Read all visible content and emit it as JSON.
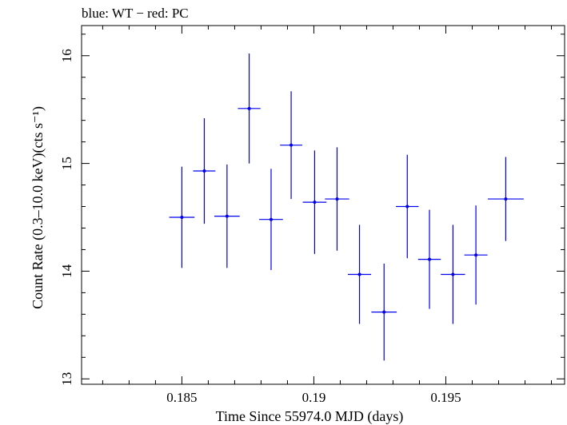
{
  "chart_data": {
    "type": "scatter",
    "title": "blue: WT − red: PC",
    "xlabel": "Time Since 55974.0 MJD (days)",
    "ylabel": "Count Rate (0.3–10.0 keV)(cts s⁻¹)",
    "xlim": [
      0.1812,
      0.1995
    ],
    "ylim": [
      12.95,
      16.28
    ],
    "x_ticks": [
      0.185,
      0.19,
      0.195
    ],
    "x_tick_labels": [
      "0.185",
      "0.19",
      "0.195"
    ],
    "y_ticks": [
      13,
      14,
      15,
      16
    ],
    "y_tick_labels": [
      "13",
      "14",
      "15",
      "16"
    ],
    "grid": false,
    "series": [
      {
        "color": "#0000ee",
        "points": [
          {
            "x": 0.185,
            "y": 14.5,
            "xerr": 0.00048,
            "yerr": 0.47
          },
          {
            "x": 0.18585,
            "y": 14.93,
            "xerr": 0.00042,
            "yerr": 0.49
          },
          {
            "x": 0.18671,
            "y": 14.51,
            "xerr": 0.00048,
            "yerr": 0.48
          },
          {
            "x": 0.18755,
            "y": 15.51,
            "xerr": 0.00043,
            "yerr": 0.51
          },
          {
            "x": 0.18838,
            "y": 14.48,
            "xerr": 0.00045,
            "yerr": 0.47
          },
          {
            "x": 0.18914,
            "y": 15.17,
            "xerr": 0.00042,
            "yerr": 0.5
          },
          {
            "x": 0.19003,
            "y": 14.64,
            "xerr": 0.00045,
            "yerr": 0.48
          },
          {
            "x": 0.19088,
            "y": 14.67,
            "xerr": 0.00046,
            "yerr": 0.48
          },
          {
            "x": 0.19173,
            "y": 13.97,
            "xerr": 0.00044,
            "yerr": 0.46
          },
          {
            "x": 0.19266,
            "y": 13.62,
            "xerr": 0.00048,
            "yerr": 0.45
          },
          {
            "x": 0.19354,
            "y": 14.6,
            "xerr": 0.00043,
            "yerr": 0.48
          },
          {
            "x": 0.19438,
            "y": 14.11,
            "xerr": 0.00043,
            "yerr": 0.46
          },
          {
            "x": 0.19527,
            "y": 13.97,
            "xerr": 0.00046,
            "yerr": 0.46
          },
          {
            "x": 0.19614,
            "y": 14.15,
            "xerr": 0.00044,
            "yerr": 0.46
          },
          {
            "x": 0.19727,
            "y": 14.67,
            "xerr": 0.00068,
            "yerr": 0.39
          }
        ]
      }
    ]
  }
}
